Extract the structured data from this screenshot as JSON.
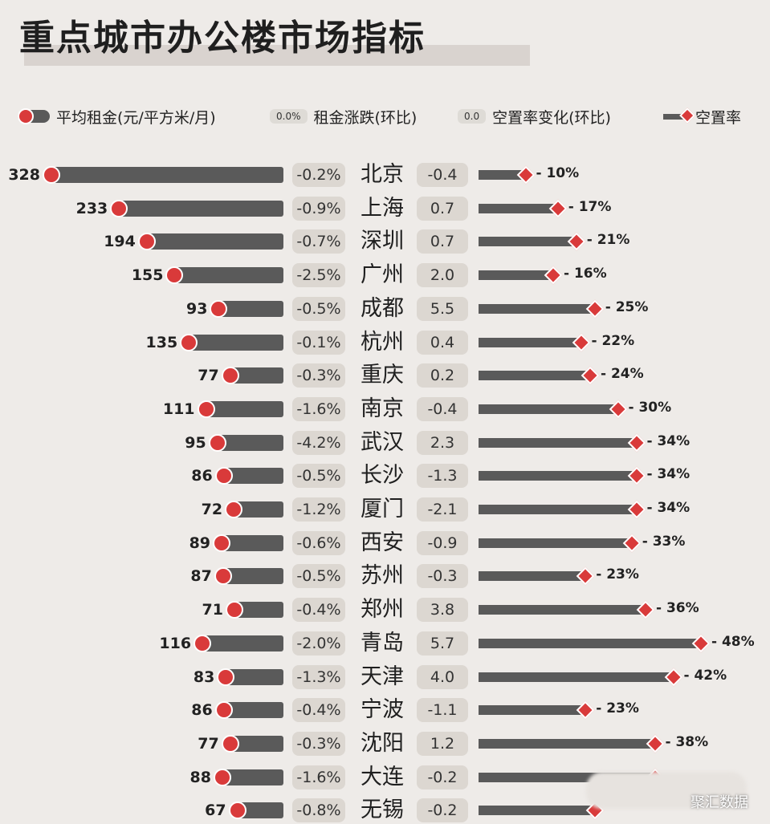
{
  "title": "重点城市办公楼市场指标",
  "legend": {
    "rent": "平均租金(元/平方米/月)",
    "rent_change_sample": "0.0%",
    "rent_change": "租金涨跌(环比)",
    "vacancy_change_sample": "0.0",
    "vacancy_change": "空置率变化(环比)",
    "vacancy": "空置率"
  },
  "colors": {
    "bar": "#5a5a5a",
    "marker": "#d93a3a",
    "box": "#dcd7d1"
  },
  "icons": {
    "rent_marker": "yuan-coin-icon",
    "vacancy_marker": "diamond-icon"
  },
  "watermark": "聚汇数据",
  "chart_data": {
    "type": "table",
    "rent_max": 328,
    "vacancy_max": 48,
    "rows": [
      {
        "city": "北京",
        "rent": 328,
        "rent_change": "-0.2%",
        "vacancy_change": "-0.4",
        "vacancy": 10
      },
      {
        "city": "上海",
        "rent": 233,
        "rent_change": "-0.9%",
        "vacancy_change": "0.7",
        "vacancy": 17
      },
      {
        "city": "深圳",
        "rent": 194,
        "rent_change": "-0.7%",
        "vacancy_change": "0.7",
        "vacancy": 21
      },
      {
        "city": "广州",
        "rent": 155,
        "rent_change": "-2.5%",
        "vacancy_change": "2.0",
        "vacancy": 16
      },
      {
        "city": "成都",
        "rent": 93,
        "rent_change": "-0.5%",
        "vacancy_change": "5.5",
        "vacancy": 25
      },
      {
        "city": "杭州",
        "rent": 135,
        "rent_change": "-0.1%",
        "vacancy_change": "0.4",
        "vacancy": 22
      },
      {
        "city": "重庆",
        "rent": 77,
        "rent_change": "-0.3%",
        "vacancy_change": "0.2",
        "vacancy": 24
      },
      {
        "city": "南京",
        "rent": 111,
        "rent_change": "-1.6%",
        "vacancy_change": "-0.4",
        "vacancy": 30
      },
      {
        "city": "武汉",
        "rent": 95,
        "rent_change": "-4.2%",
        "vacancy_change": "2.3",
        "vacancy": 34
      },
      {
        "city": "长沙",
        "rent": 86,
        "rent_change": "-0.5%",
        "vacancy_change": "-1.3",
        "vacancy": 34
      },
      {
        "city": "厦门",
        "rent": 72,
        "rent_change": "-1.2%",
        "vacancy_change": "-2.1",
        "vacancy": 34
      },
      {
        "city": "西安",
        "rent": 89,
        "rent_change": "-0.6%",
        "vacancy_change": "-0.9",
        "vacancy": 33
      },
      {
        "city": "苏州",
        "rent": 87,
        "rent_change": "-0.5%",
        "vacancy_change": "-0.3",
        "vacancy": 23
      },
      {
        "city": "郑州",
        "rent": 71,
        "rent_change": "-0.4%",
        "vacancy_change": "3.8",
        "vacancy": 36
      },
      {
        "city": "青岛",
        "rent": 116,
        "rent_change": "-2.0%",
        "vacancy_change": "5.7",
        "vacancy": 48
      },
      {
        "city": "天津",
        "rent": 83,
        "rent_change": "-1.3%",
        "vacancy_change": "4.0",
        "vacancy": 42
      },
      {
        "city": "宁波",
        "rent": 86,
        "rent_change": "-0.4%",
        "vacancy_change": "-1.1",
        "vacancy": 23
      },
      {
        "city": "沈阳",
        "rent": 77,
        "rent_change": "-0.3%",
        "vacancy_change": "1.2",
        "vacancy": 38
      },
      {
        "city": "大连",
        "rent": 88,
        "rent_change": "-1.6%",
        "vacancy_change": "-0.2",
        "vacancy": null
      },
      {
        "city": "无锡",
        "rent": 67,
        "rent_change": "-0.8%",
        "vacancy_change": "-0.2",
        "vacancy": null
      }
    ]
  }
}
